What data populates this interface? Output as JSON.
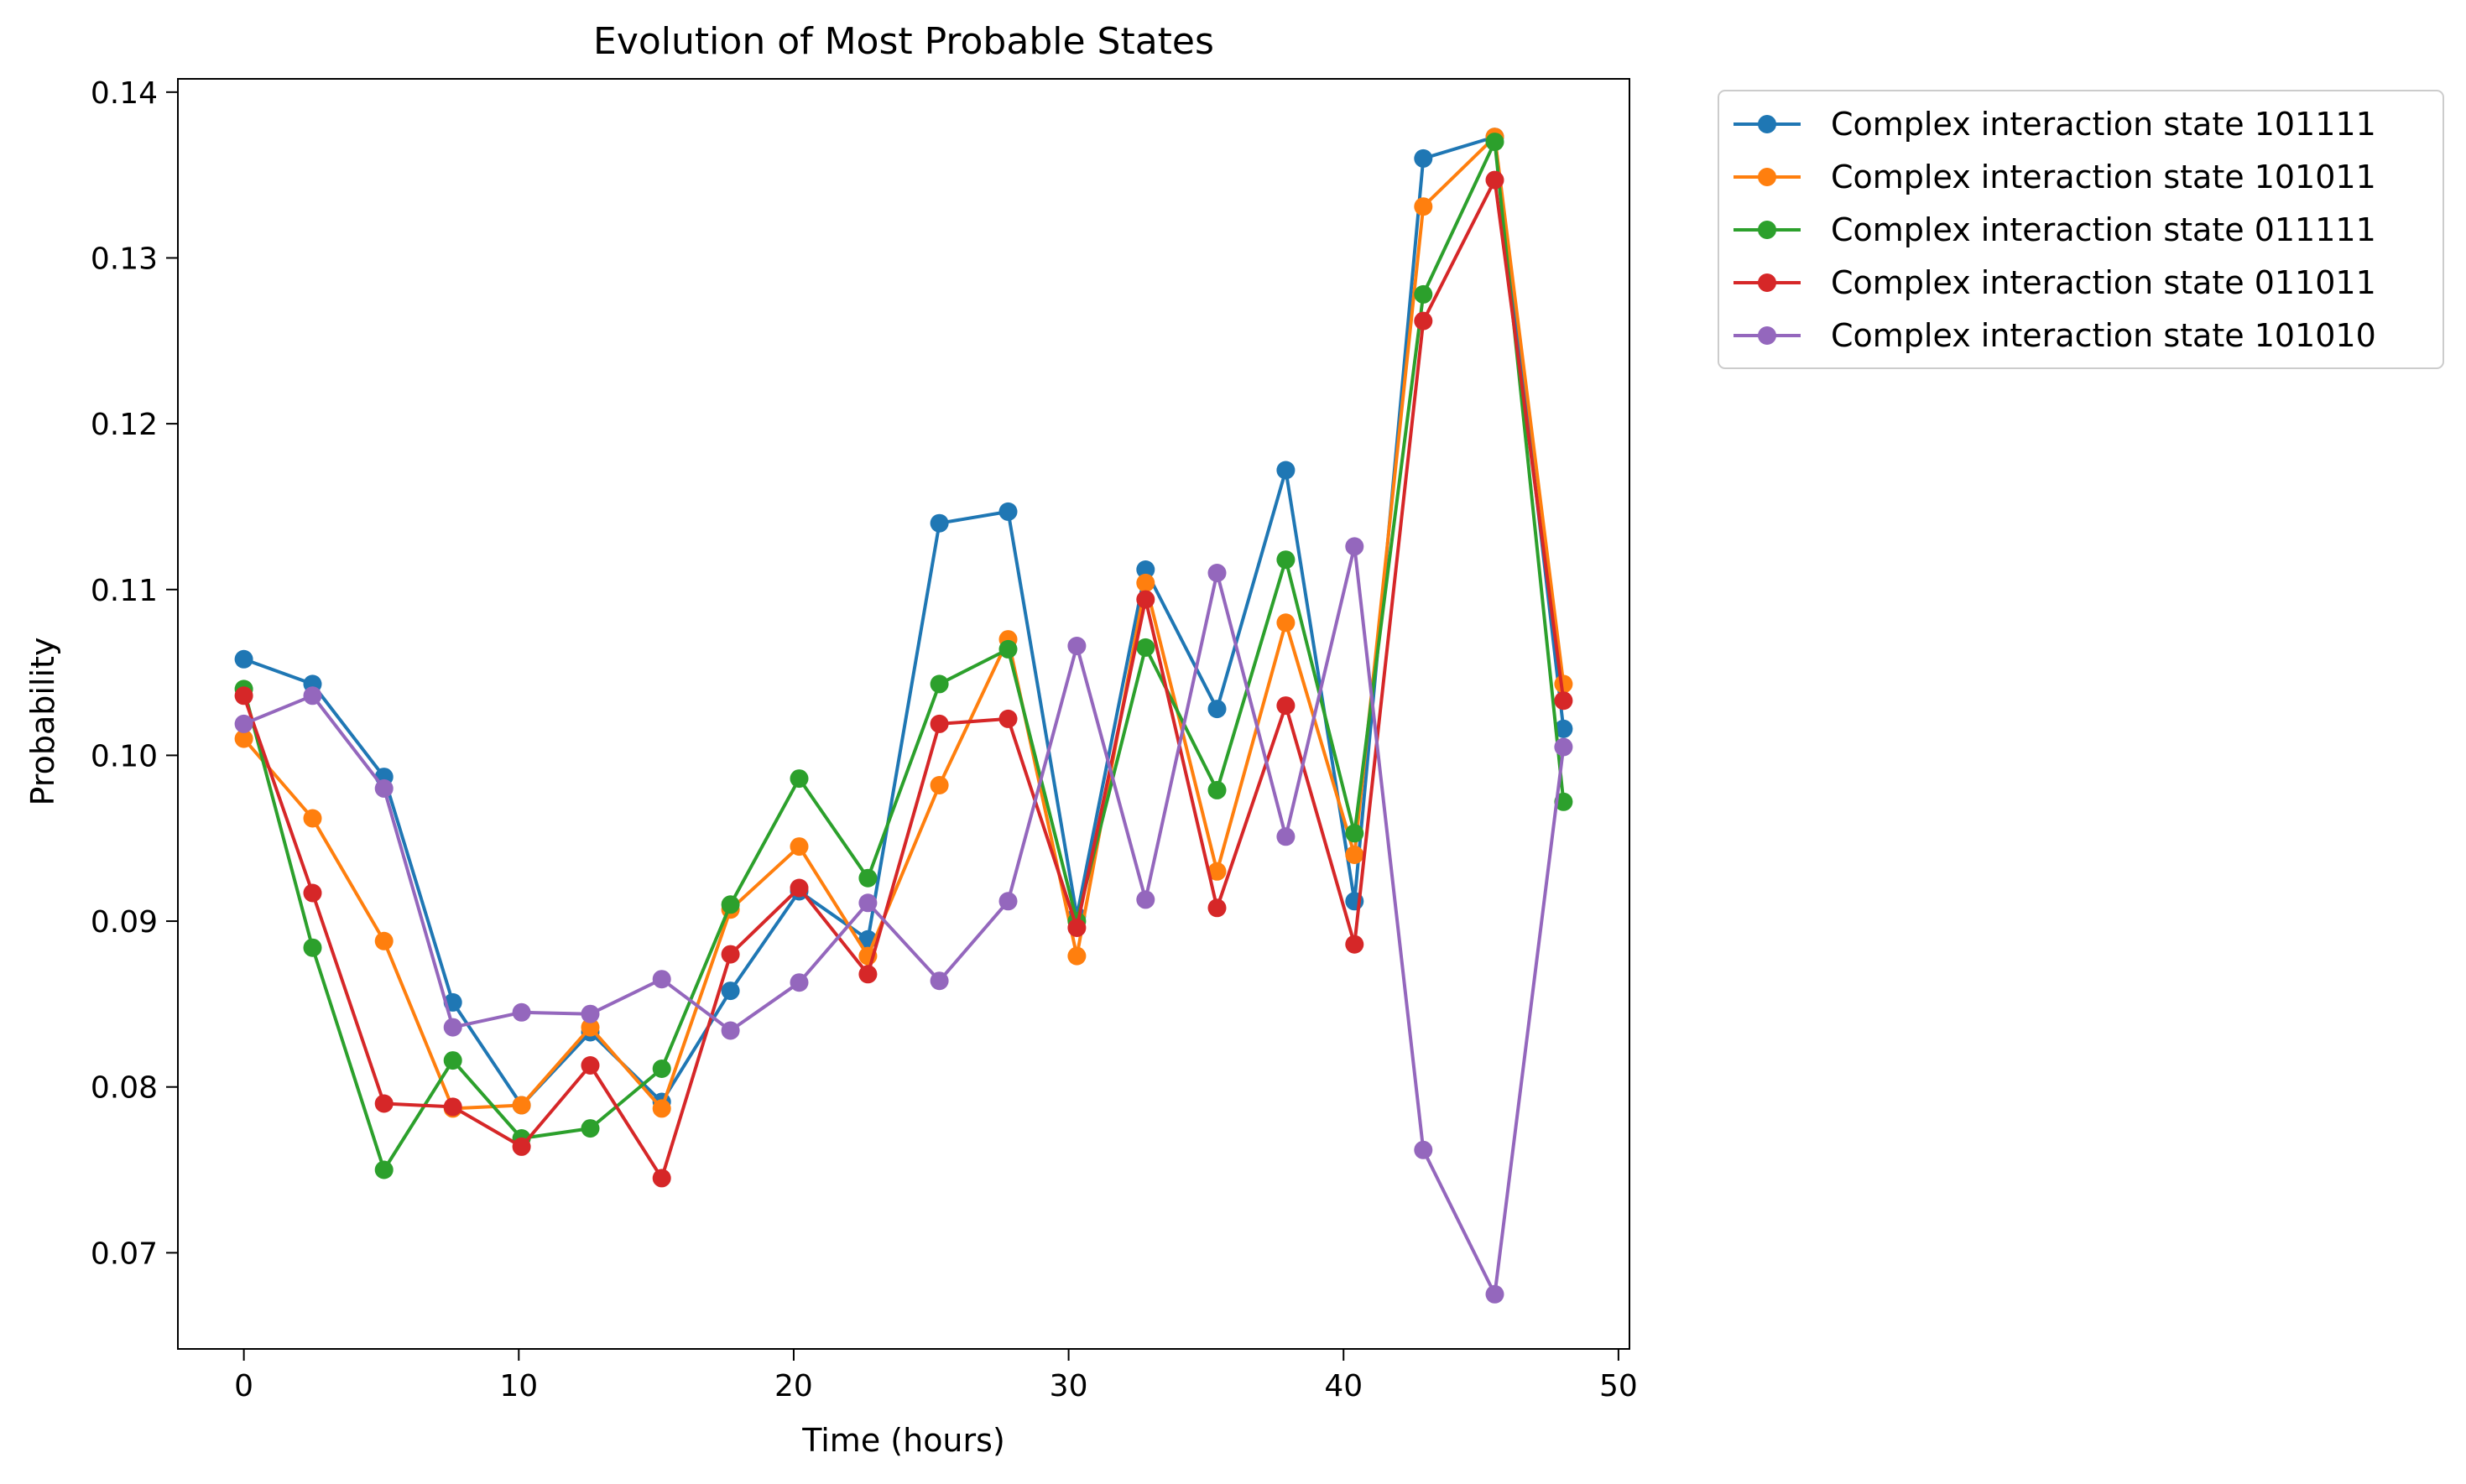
{
  "chart_data": {
    "type": "line",
    "title": "Evolution of Most Probable States",
    "xlabel": "Time (hours)",
    "ylabel": "Probability",
    "xlim": [
      -2.4,
      50.4
    ],
    "ylim": [
      0.0642,
      0.1408
    ],
    "xticks": [
      0,
      10,
      20,
      30,
      40,
      50
    ],
    "yticks": [
      0.07,
      0.08,
      0.09,
      0.1,
      0.11,
      0.12,
      0.13,
      0.14
    ],
    "xtick_labels": [
      "0",
      "10",
      "20",
      "30",
      "40",
      "50"
    ],
    "ytick_labels": [
      "0.07",
      "0.08",
      "0.09",
      "0.10",
      "0.11",
      "0.12",
      "0.13",
      "0.14"
    ],
    "grid": false,
    "legend_position": "outside-top-right",
    "x": [
      0,
      2.5,
      5.1,
      7.6,
      10.1,
      12.6,
      15.2,
      17.7,
      20.2,
      22.7,
      25.3,
      27.8,
      30.3,
      32.8,
      35.4,
      37.9,
      40.4,
      42.9,
      45.5,
      48.0
    ],
    "series": [
      {
        "name": "Complex interaction state 101111",
        "color": "#1f77b4",
        "values": [
          0.1058,
          0.1043,
          0.0987,
          0.0851,
          0.0789,
          0.0833,
          0.0791,
          0.0858,
          0.0918,
          0.0889,
          0.114,
          0.1147,
          0.0903,
          0.1112,
          0.1028,
          0.1172,
          0.0912,
          0.136,
          0.1373,
          0.1016
        ]
      },
      {
        "name": "Complex interaction state 101011",
        "color": "#ff7f0e",
        "values": [
          0.101,
          0.0962,
          0.0888,
          0.0787,
          0.0789,
          0.0836,
          0.0787,
          0.0907,
          0.0945,
          0.0879,
          0.0982,
          0.107,
          0.0879,
          0.1104,
          0.093,
          0.108,
          0.094,
          0.1331,
          0.1373,
          0.1043
        ]
      },
      {
        "name": "Complex interaction state 011111",
        "color": "#2ca02c",
        "values": [
          0.104,
          0.0884,
          0.075,
          0.0816,
          0.0769,
          0.0775,
          0.0811,
          0.091,
          0.0986,
          0.0926,
          0.1043,
          0.1064,
          0.09,
          0.1065,
          0.0979,
          0.1118,
          0.0953,
          0.1278,
          0.137,
          0.0972
        ]
      },
      {
        "name": "Complex interaction state 011011",
        "color": "#d62728",
        "values": [
          0.1036,
          0.0917,
          0.079,
          0.0788,
          0.0764,
          0.0813,
          0.0745,
          0.088,
          0.092,
          0.0868,
          0.1019,
          0.1022,
          0.0896,
          0.1094,
          0.0908,
          0.103,
          0.0886,
          0.1262,
          0.1347,
          0.1033
        ]
      },
      {
        "name": "Complex interaction state 101010",
        "color": "#9467bd",
        "values": [
          0.1019,
          0.1036,
          0.098,
          0.0836,
          0.0845,
          0.0844,
          0.0865,
          0.0834,
          0.0863,
          0.0911,
          0.0864,
          0.0912,
          0.1066,
          0.0913,
          0.111,
          0.0951,
          0.1126,
          0.0762,
          0.0675,
          0.1005
        ]
      }
    ]
  }
}
